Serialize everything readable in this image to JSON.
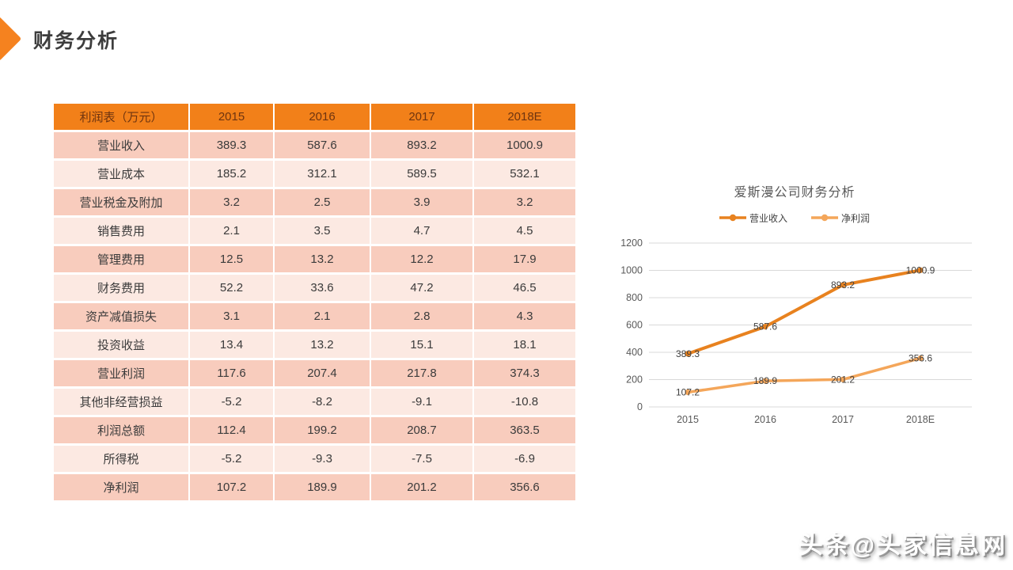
{
  "page": {
    "title": "财务分析",
    "watermark": "头条@头家信息网"
  },
  "colors": {
    "accent_orange": "#F5821F",
    "table_header_bg": "#F28019",
    "table_header_text": "#6E3410",
    "row_band_dark": "#F8CCBD",
    "row_band_light": "#FCE9E2",
    "gridline": "#D9D9D9",
    "axis_text": "#595959",
    "series_revenue": "#E8821F",
    "series_net_profit": "#F4A65A"
  },
  "table": {
    "header": {
      "label": "利润表（万元）",
      "years": [
        "2015",
        "2016",
        "2017",
        "2018E"
      ]
    },
    "rows": [
      {
        "label": "营业收入",
        "values": [
          "389.3",
          "587.6",
          "893.2",
          "1000.9"
        ]
      },
      {
        "label": "营业成本",
        "values": [
          "185.2",
          "312.1",
          "589.5",
          "532.1"
        ]
      },
      {
        "label": "营业税金及附加",
        "values": [
          "3.2",
          "2.5",
          "3.9",
          "3.2"
        ]
      },
      {
        "label": "销售费用",
        "values": [
          "2.1",
          "3.5",
          "4.7",
          "4.5"
        ]
      },
      {
        "label": "管理费用",
        "values": [
          "12.5",
          "13.2",
          "12.2",
          "17.9"
        ]
      },
      {
        "label": "财务费用",
        "values": [
          "52.2",
          "33.6",
          "47.2",
          "46.5"
        ]
      },
      {
        "label": "资产减值损失",
        "values": [
          "3.1",
          "2.1",
          "2.8",
          "4.3"
        ]
      },
      {
        "label": "投资收益",
        "values": [
          "13.4",
          "13.2",
          "15.1",
          "18.1"
        ]
      },
      {
        "label": "营业利润",
        "values": [
          "117.6",
          "207.4",
          "217.8",
          "374.3"
        ]
      },
      {
        "label": "其他非经营损益",
        "values": [
          "-5.2",
          "-8.2",
          "-9.1",
          "-10.8"
        ]
      },
      {
        "label": "利润总额",
        "values": [
          "112.4",
          "199.2",
          "208.7",
          "363.5"
        ]
      },
      {
        "label": "所得税",
        "values": [
          "-5.2",
          "-9.3",
          "-7.5",
          "-6.9"
        ]
      },
      {
        "label": "净利润",
        "values": [
          "107.2",
          "189.9",
          "201.2",
          "356.6"
        ]
      }
    ]
  },
  "chart_data": {
    "type": "line",
    "title": "爱斯漫公司财务分析",
    "categories": [
      "2015",
      "2016",
      "2017",
      "2018E"
    ],
    "series": [
      {
        "name": "营业收入",
        "values": [
          389.3,
          587.6,
          893.2,
          1000.9
        ],
        "color": "#E8821F"
      },
      {
        "name": "净利润",
        "values": [
          107.2,
          189.9,
          201.2,
          356.6
        ],
        "color": "#F4A65A"
      }
    ],
    "ylim": [
      0,
      1200
    ],
    "yticks": [
      0,
      200,
      400,
      600,
      800,
      1000,
      1200
    ],
    "grid": true,
    "legend_position": "top",
    "data_label_position": "center"
  }
}
